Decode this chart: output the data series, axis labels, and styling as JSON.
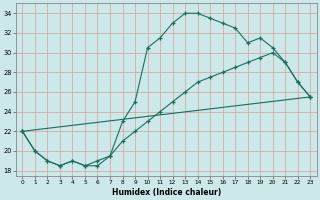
{
  "xlabel": "Humidex (Indice chaleur)",
  "background_color": "#cce8e8",
  "line_color": "#1a6e5e",
  "grid_color": "#d4a0a0",
  "xlim": [
    -0.5,
    23.5
  ],
  "ylim": [
    17.5,
    35.0
  ],
  "yticks": [
    18,
    20,
    22,
    24,
    26,
    28,
    30,
    32,
    34
  ],
  "xticks": [
    0,
    1,
    2,
    3,
    4,
    5,
    6,
    7,
    8,
    9,
    10,
    11,
    12,
    13,
    14,
    15,
    16,
    17,
    18,
    19,
    20,
    21,
    22,
    23
  ],
  "line1_x": [
    0,
    1,
    2,
    3,
    4,
    5,
    6,
    7,
    8,
    9,
    10,
    11,
    12,
    13,
    14,
    15,
    16,
    17,
    18,
    19,
    20,
    21,
    22,
    23
  ],
  "line1_y": [
    22,
    20,
    19,
    18.5,
    19,
    18.5,
    19,
    19.5,
    23,
    25,
    30.5,
    31.5,
    33,
    34,
    34,
    33.5,
    33,
    32.5,
    31,
    31.5,
    30.5,
    29,
    27,
    25.5
  ],
  "line2_x": [
    0,
    1,
    2,
    3,
    4,
    5,
    6,
    7,
    8,
    9,
    10,
    11,
    12,
    13,
    14,
    15,
    16,
    17,
    18,
    19,
    20,
    21,
    22,
    23
  ],
  "line2_y": [
    22,
    20,
    19,
    18.5,
    19,
    18.5,
    18.5,
    19.5,
    21,
    22,
    23,
    24,
    25,
    26,
    27,
    27.5,
    28,
    28.5,
    29,
    29.5,
    30,
    29,
    27,
    25.5
  ],
  "line3_x": [
    0,
    23
  ],
  "line3_y": [
    22,
    25.5
  ]
}
